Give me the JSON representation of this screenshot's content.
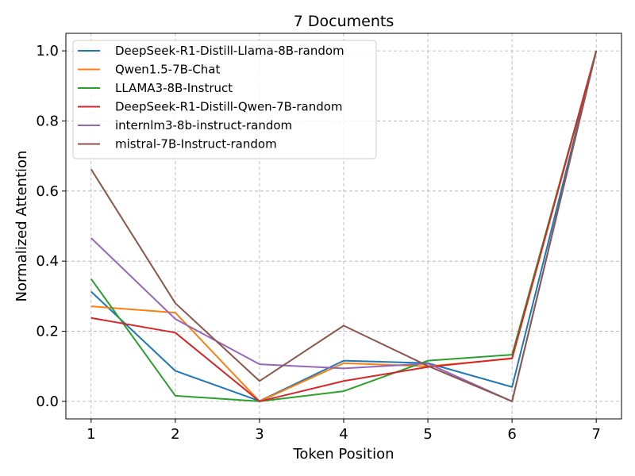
{
  "chart_data": {
    "type": "line",
    "title": "7 Documents",
    "xlabel": "Token Position",
    "ylabel": "Normalized Attention",
    "x": [
      1,
      2,
      3,
      4,
      5,
      6,
      7
    ],
    "x_ticks": [
      "1",
      "2",
      "3",
      "4",
      "5",
      "6",
      "7"
    ],
    "y_ticks": [
      "0.0",
      "0.2",
      "0.4",
      "0.6",
      "0.8",
      "1.0"
    ],
    "xlim": [
      0.7,
      7.3
    ],
    "ylim": [
      -0.05,
      1.05
    ],
    "grid": true,
    "legend_position": "top-left",
    "series": [
      {
        "name": "DeepSeek-R1-Distill-Llama-8B-random",
        "color": "#1f77b4",
        "values": [
          0.313,
          0.087,
          0.001,
          0.116,
          0.109,
          0.041,
          1.0
        ]
      },
      {
        "name": "Qwen1.5-7B-Chat",
        "color": "#ff7f0e",
        "values": [
          0.271,
          0.253,
          0.0,
          0.109,
          0.1,
          0.122,
          1.0
        ]
      },
      {
        "name": "LLAMA3-8B-Instruct",
        "color": "#2ca02c",
        "values": [
          0.349,
          0.016,
          0.0,
          0.029,
          0.116,
          0.133,
          1.0
        ]
      },
      {
        "name": "DeepSeek-R1-Distill-Qwen-7B-random",
        "color": "#d62728",
        "values": [
          0.238,
          0.196,
          0.0,
          0.058,
          0.098,
          0.123,
          1.0
        ]
      },
      {
        "name": "internlm3-8b-instruct-random",
        "color": "#9467bd",
        "values": [
          0.466,
          0.235,
          0.106,
          0.094,
          0.108,
          0.0,
          1.0
        ]
      },
      {
        "name": "mistral-7B-Instruct-random",
        "color": "#8c564b",
        "values": [
          0.662,
          0.28,
          0.058,
          0.216,
          0.101,
          0.0,
          1.0
        ]
      }
    ]
  }
}
